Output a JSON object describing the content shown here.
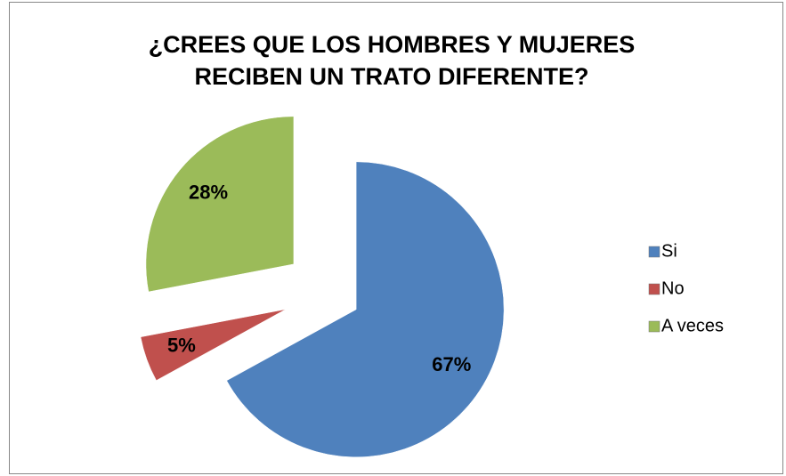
{
  "chart_data": {
    "type": "pie",
    "title": "¿CREES QUE LOS HOMBRES Y MUJERES RECIBEN UN TRATO DIFERENTE?",
    "categories": [
      "Si",
      "No",
      "A veces"
    ],
    "values": [
      67,
      5,
      28
    ],
    "value_labels": [
      "67%",
      "5%",
      "28%"
    ],
    "colors": [
      "#4f81bd",
      "#c0504d",
      "#9bbb59"
    ],
    "legend": "right"
  }
}
